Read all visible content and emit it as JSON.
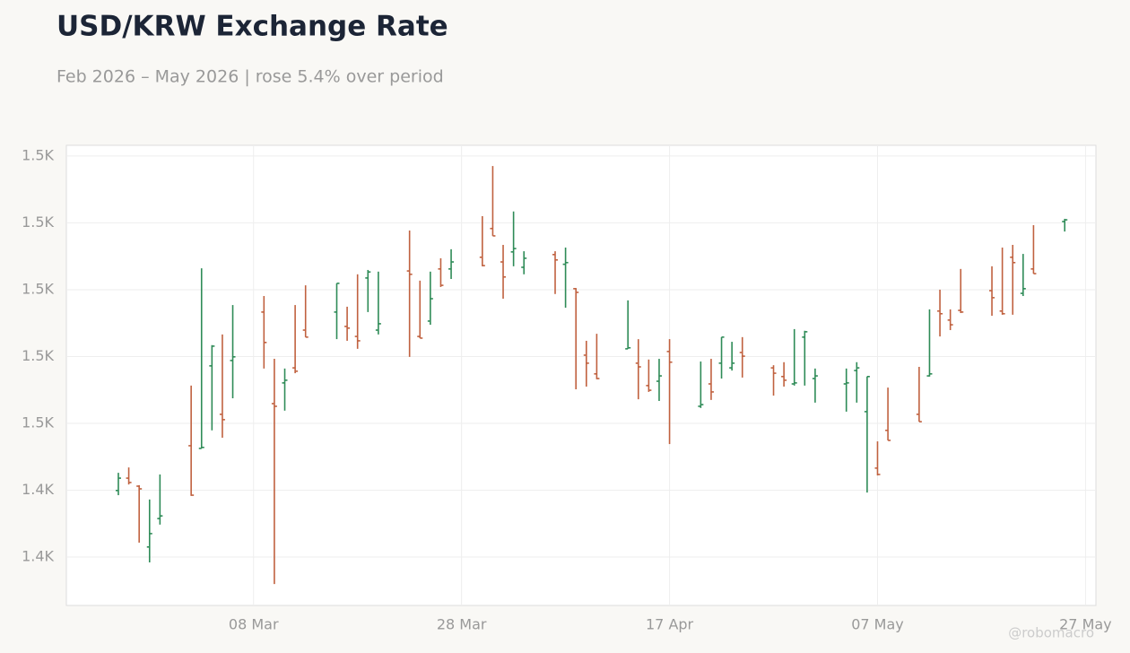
{
  "chart_data": {
    "type": "ohlc",
    "title": "USD/KRW Exchange Rate",
    "subtitle": "Feb 2026 – May 2026 | rose 5.4% over period",
    "watermark": "@robomacro",
    "up_color": "#2e8b57",
    "down_color": "#c0613f",
    "grid": true,
    "x": [
      "2026-02-23",
      "2026-02-24",
      "2026-02-25",
      "2026-02-26",
      "2026-02-27",
      "2026-03-02",
      "2026-03-03",
      "2026-03-04",
      "2026-03-05",
      "2026-03-06",
      "2026-03-09",
      "2026-03-10",
      "2026-03-11",
      "2026-03-12",
      "2026-03-13",
      "2026-03-16",
      "2026-03-17",
      "2026-03-18",
      "2026-03-19",
      "2026-03-20",
      "2026-03-23",
      "2026-03-24",
      "2026-03-25",
      "2026-03-26",
      "2026-03-27",
      "2026-03-30",
      "2026-03-31",
      "2026-04-01",
      "2026-04-02",
      "2026-04-03",
      "2026-04-06",
      "2026-04-07",
      "2026-04-08",
      "2026-04-09",
      "2026-04-10",
      "2026-04-13",
      "2026-04-14",
      "2026-04-15",
      "2026-04-16",
      "2026-04-17",
      "2026-04-20",
      "2026-04-21",
      "2026-04-22",
      "2026-04-23",
      "2026-04-24",
      "2026-04-27",
      "2026-04-28",
      "2026-04-29",
      "2026-04-30",
      "2026-05-01",
      "2026-05-04",
      "2026-05-05",
      "2026-05-06",
      "2026-05-07",
      "2026-05-08",
      "2026-05-11",
      "2026-05-12",
      "2026-05-13",
      "2026-05-14",
      "2026-05-15",
      "2026-05-18",
      "2026-05-19",
      "2026-05-20",
      "2026-05-21",
      "2026-05-22",
      "2026-05-25"
    ],
    "open": [
      1439.9,
      1443.6,
      1441.2,
      1423.0,
      1431.5,
      1453.3,
      1452.5,
      1477.2,
      1462.7,
      1478.8,
      1493.3,
      1465.9,
      1472.1,
      1476.6,
      1487.9,
      1493.3,
      1489.0,
      1486.0,
      1503.5,
      1487.9,
      1505.6,
      1486.0,
      1490.6,
      1506.2,
      1506.2,
      1509.7,
      1518.3,
      1508.3,
      1511.3,
      1506.7,
      1510.5,
      1507.6,
      1500.3,
      1480.4,
      1474.8,
      1482.3,
      1478.0,
      1471.3,
      1472.6,
      1481.5,
      1465.1,
      1471.8,
      1478.0,
      1476.6,
      1481.2,
      1476.6,
      1474.0,
      1471.8,
      1485.8,
      1473.4,
      1471.8,
      1475.8,
      1463.5,
      1446.6,
      1457.9,
      1462.7,
      1474.2,
      1493.6,
      1490.9,
      1493.8,
      1499.7,
      1493.6,
      1509.7,
      1498.9,
      1506.2,
      1520.4
    ],
    "high": [
      1445.2,
      1446.8,
      1441.5,
      1437.2,
      1444.7,
      1471.3,
      1506.4,
      1483.4,
      1486.6,
      1495.4,
      1498.1,
      1479.3,
      1476.4,
      1495.4,
      1501.3,
      1501.9,
      1494.9,
      1504.6,
      1505.9,
      1505.4,
      1517.7,
      1502.7,
      1505.4,
      1509.4,
      1512.1,
      1522.0,
      1537.0,
      1513.4,
      1523.4,
      1511.5,
      1511.5,
      1512.6,
      1500.5,
      1484.7,
      1486.8,
      1496.8,
      1485.2,
      1479.1,
      1479.3,
      1485.2,
      1478.5,
      1479.3,
      1485.8,
      1484.4,
      1485.8,
      1477.4,
      1478.3,
      1488.2,
      1487.7,
      1476.4,
      1476.4,
      1478.3,
      1474.0,
      1454.6,
      1470.7,
      1476.9,
      1494.1,
      1500.0,
      1494.1,
      1506.2,
      1507.0,
      1512.6,
      1513.4,
      1510.7,
      1519.3,
      1521.2
    ],
    "low": [
      1438.5,
      1441.7,
      1424.3,
      1418.4,
      1429.7,
      1438.3,
      1452.5,
      1457.9,
      1455.7,
      1467.5,
      1476.4,
      1411.9,
      1463.8,
      1475.0,
      1485.8,
      1485.2,
      1484.7,
      1482.3,
      1493.3,
      1486.6,
      1479.9,
      1485.5,
      1489.5,
      1500.8,
      1503.2,
      1507.0,
      1516.1,
      1497.3,
      1507.0,
      1504.6,
      1498.7,
      1494.6,
      1470.2,
      1471.0,
      1473.2,
      1482.3,
      1467.2,
      1469.4,
      1466.7,
      1453.8,
      1464.6,
      1467.0,
      1473.4,
      1475.8,
      1473.7,
      1468.3,
      1471.0,
      1471.3,
      1471.3,
      1466.2,
      1463.5,
      1466.2,
      1439.3,
      1444.4,
      1454.9,
      1460.5,
      1474.0,
      1486.0,
      1487.9,
      1493.0,
      1492.2,
      1492.5,
      1492.5,
      1498.1,
      1504.8,
      1517.4
    ],
    "close": [
      1443.6,
      1442.3,
      1440.4,
      1427.0,
      1432.3,
      1438.5,
      1452.8,
      1483.1,
      1461.1,
      1479.9,
      1484.2,
      1465.1,
      1472.9,
      1475.6,
      1485.8,
      1501.9,
      1488.5,
      1484.7,
      1505.3,
      1489.8,
      1504.6,
      1485.5,
      1497.3,
      1501.3,
      1508.3,
      1507.2,
      1516.1,
      1503.8,
      1512.3,
      1509.4,
      1508.9,
      1508.1,
      1499.2,
      1478.0,
      1473.4,
      1482.6,
      1476.9,
      1469.9,
      1474.2,
      1478.3,
      1465.6,
      1469.4,
      1485.8,
      1478.0,
      1480.1,
      1475.0,
      1472.9,
      1472.1,
      1487.4,
      1474.2,
      1472.1,
      1476.6,
      1474.0,
      1444.7,
      1454.9,
      1460.5,
      1474.8,
      1492.8,
      1489.5,
      1493.3,
      1497.6,
      1492.8,
      1508.1,
      1500.3,
      1504.8,
      1520.9
    ],
    "xlim": [
      "2026-02-18",
      "2026-05-28"
    ],
    "xticks": [
      {
        "value": "2026-03-08",
        "label": "08 Mar"
      },
      {
        "value": "2026-03-28",
        "label": "28 Mar"
      },
      {
        "value": "2026-04-17",
        "label": "17 Apr"
      },
      {
        "value": "2026-05-07",
        "label": "07 May"
      },
      {
        "value": "2026-05-27",
        "label": "27 May"
      }
    ],
    "ylim": [
      1405.5,
      1543.2
    ],
    "yticks": [
      {
        "value": 1420,
        "label": "1.4K"
      },
      {
        "value": 1440,
        "label": "1.4K"
      },
      {
        "value": 1460,
        "label": "1.5K"
      },
      {
        "value": 1480,
        "label": "1.5K"
      },
      {
        "value": 1500,
        "label": "1.5K"
      },
      {
        "value": 1520,
        "label": "1.5K"
      },
      {
        "value": 1540,
        "label": "1.5K"
      }
    ]
  }
}
